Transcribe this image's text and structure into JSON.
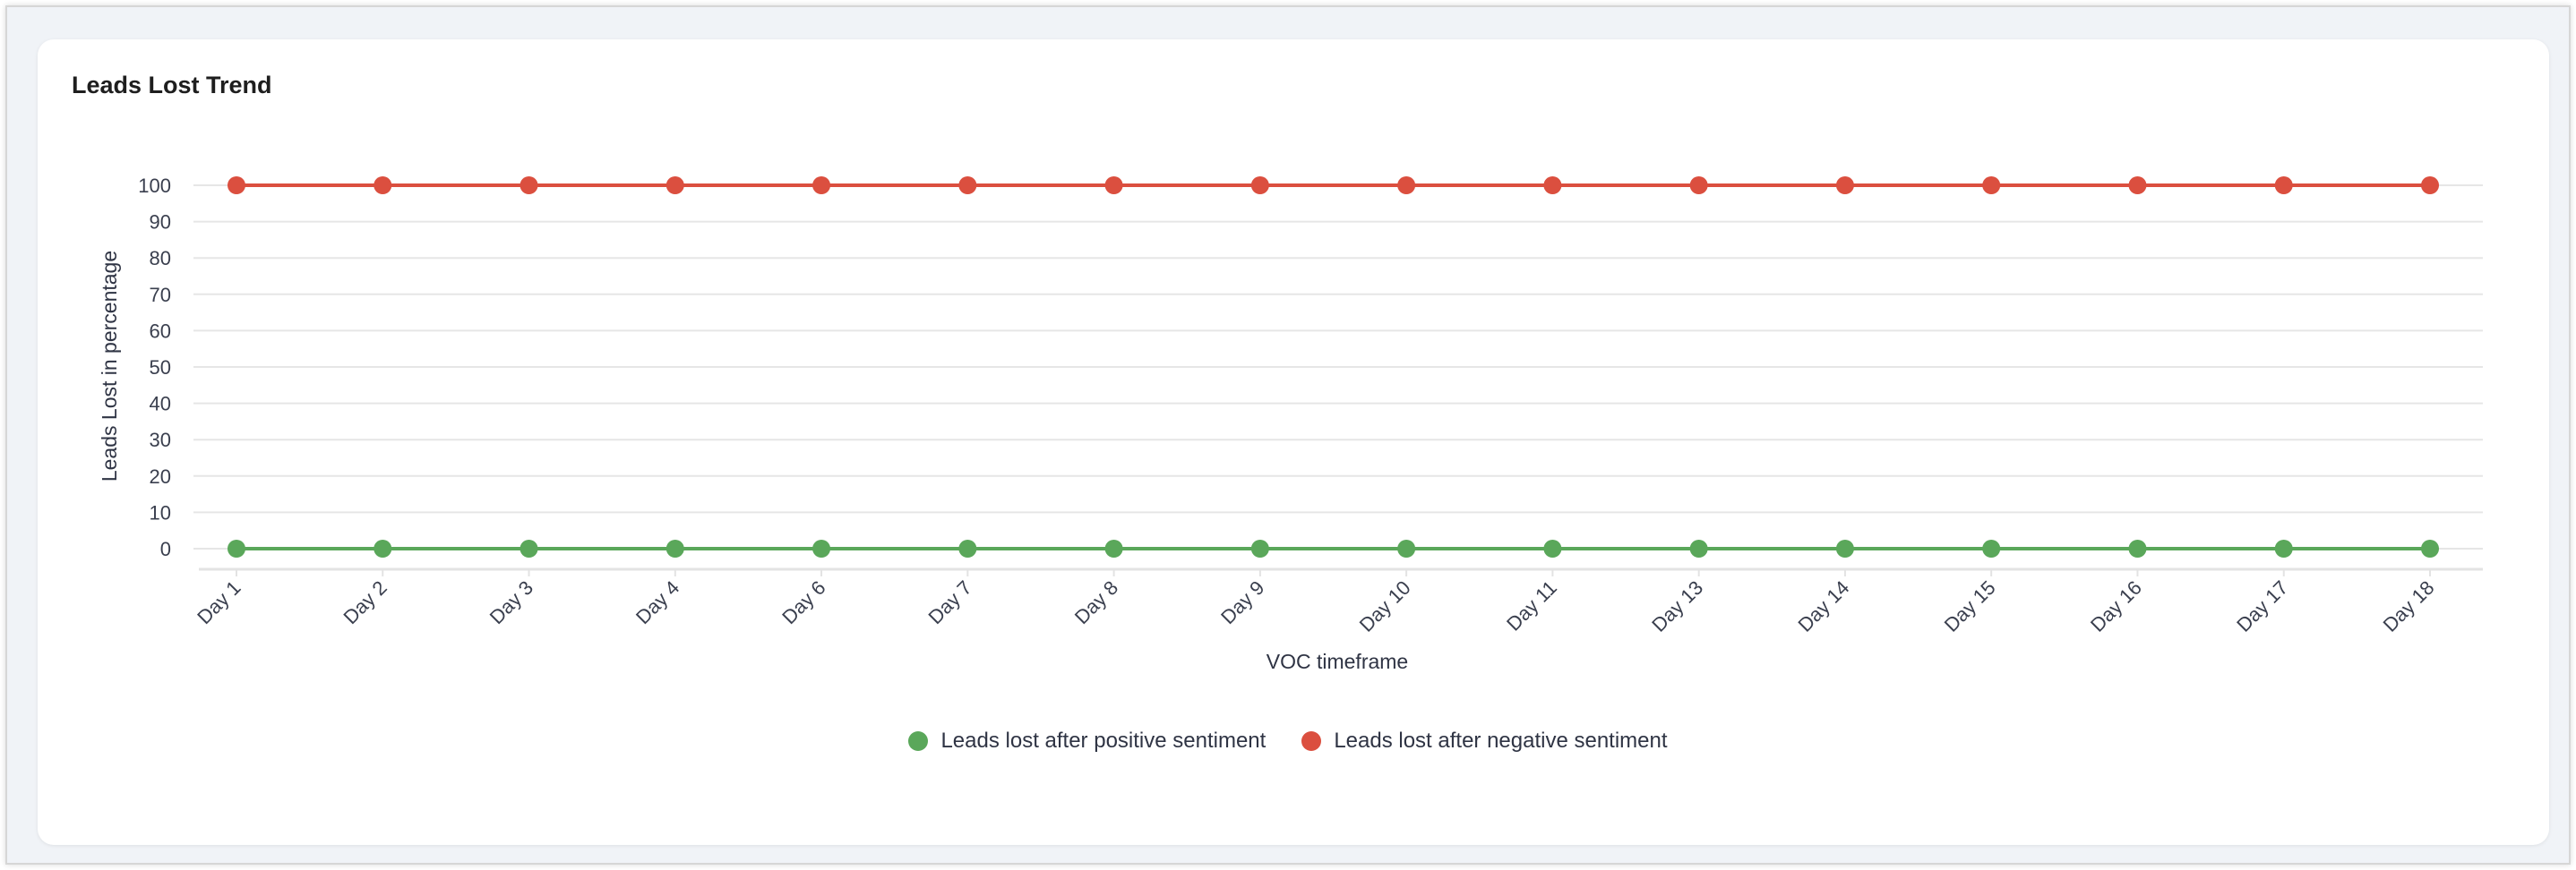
{
  "card": {
    "title": "Leads Lost Trend"
  },
  "chart_data": {
    "type": "line",
    "title": "Leads Lost Trend",
    "xlabel": "VOC timeframe",
    "ylabel": "Leads Lost in percentage",
    "ylim": [
      0,
      100
    ],
    "yticks": [
      0,
      10,
      20,
      30,
      40,
      50,
      60,
      70,
      80,
      90,
      100
    ],
    "grid": true,
    "legend_position": "bottom",
    "categories": [
      "Day 1",
      "Day 2",
      "Day 3",
      "Day 4",
      "Day 6",
      "Day 7",
      "Day 8",
      "Day 9",
      "Day 10",
      "Day 11",
      "Day 13",
      "Day 14",
      "Day 15",
      "Day 16",
      "Day 17",
      "Day 18"
    ],
    "series": [
      {
        "name": "Leads lost after positive sentiment",
        "color": "#5aa75a",
        "values": [
          0,
          0,
          0,
          0,
          0,
          0,
          0,
          0,
          0,
          0,
          0,
          0,
          0,
          0,
          0,
          0
        ]
      },
      {
        "name": "Leads lost after negative sentiment",
        "color": "#db4f3f",
        "values": [
          100,
          100,
          100,
          100,
          100,
          100,
          100,
          100,
          100,
          100,
          100,
          100,
          100,
          100,
          100,
          100
        ]
      }
    ]
  }
}
